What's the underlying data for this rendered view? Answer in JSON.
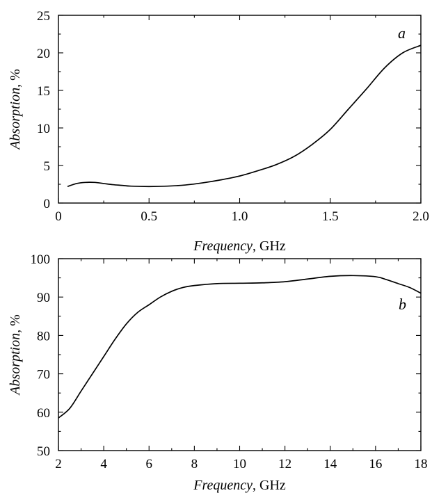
{
  "chart_data": [
    {
      "type": "line",
      "panel_label": "a",
      "xlabel": {
        "italic": "Frequency",
        "rest": ", GHz"
      },
      "ylabel": {
        "italic": "Absorption",
        "rest": ", %"
      },
      "xlim": [
        0,
        2.0
      ],
      "ylim": [
        0,
        25
      ],
      "x_ticks": [
        0,
        0.5,
        1.0,
        1.5,
        2.0
      ],
      "x_tick_labels": [
        "0",
        "0.5",
        "1.0",
        "1.5",
        "2.0"
      ],
      "y_ticks": [
        0,
        5,
        10,
        15,
        20,
        25
      ],
      "y_tick_labels": [
        "0",
        "5",
        "10",
        "15",
        "20",
        "25"
      ],
      "grid": false,
      "series": [
        {
          "x": [
            0.05,
            0.1,
            0.15,
            0.2,
            0.25,
            0.3,
            0.35,
            0.4,
            0.5,
            0.6,
            0.7,
            0.8,
            0.9,
            1.0,
            1.1,
            1.2,
            1.3,
            1.4,
            1.5,
            1.6,
            1.7,
            1.8,
            1.9,
            2.0
          ],
          "y": [
            2.2,
            2.6,
            2.75,
            2.75,
            2.6,
            2.45,
            2.35,
            2.25,
            2.2,
            2.25,
            2.4,
            2.7,
            3.1,
            3.6,
            4.3,
            5.1,
            6.2,
            7.8,
            9.8,
            12.5,
            15.2,
            18.0,
            20.0,
            21.0
          ]
        }
      ]
    },
    {
      "type": "line",
      "panel_label": "b",
      "xlabel": {
        "italic": "Frequency",
        "rest": ", GHz"
      },
      "ylabel": {
        "italic": "Absorption",
        "rest": ", %"
      },
      "xlim": [
        2,
        18
      ],
      "ylim": [
        50,
        100
      ],
      "x_ticks": [
        2,
        4,
        6,
        8,
        10,
        12,
        14,
        16,
        18
      ],
      "x_tick_labels": [
        "2",
        "4",
        "6",
        "8",
        "10",
        "12",
        "14",
        "16",
        "18"
      ],
      "y_ticks": [
        50,
        60,
        70,
        80,
        90,
        100
      ],
      "y_tick_labels": [
        "50",
        "60",
        "70",
        "80",
        "90",
        "100"
      ],
      "grid": false,
      "series": [
        {
          "x": [
            2,
            2.5,
            3,
            3.5,
            4,
            4.5,
            5,
            5.5,
            6,
            6.5,
            7,
            7.5,
            8,
            9,
            10,
            11,
            12,
            13,
            14,
            15,
            16,
            16.5,
            17,
            17.5,
            18
          ],
          "y": [
            58.5,
            61.0,
            65.5,
            70.0,
            74.5,
            79.0,
            83.0,
            86.0,
            88.0,
            90.0,
            91.5,
            92.5,
            93.0,
            93.5,
            93.6,
            93.7,
            94.0,
            94.7,
            95.4,
            95.6,
            95.3,
            94.5,
            93.5,
            92.5,
            91.0
          ]
        }
      ]
    }
  ]
}
